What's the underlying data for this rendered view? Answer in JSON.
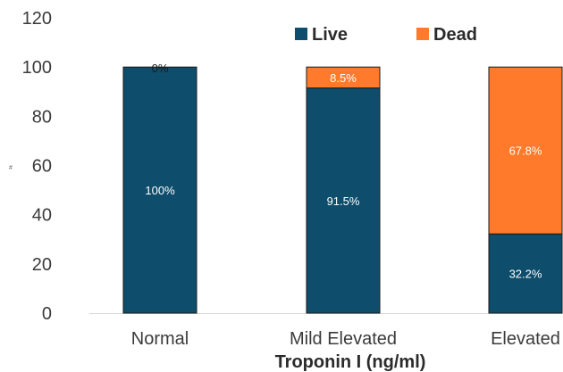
{
  "chart_data": {
    "type": "bar",
    "stacked": true,
    "categories": [
      "Normal",
      "Mild Elevated",
      "Elevated"
    ],
    "series": [
      {
        "name": "Live",
        "color": "#0E4D6B",
        "values": [
          100,
          91.5,
          32.2
        ],
        "labels": [
          "100%",
          "91.5%",
          "32.2%"
        ]
      },
      {
        "name": "Dead",
        "color": "#FF7A2A",
        "values": [
          0,
          8.5,
          67.8
        ],
        "labels": [
          "0%",
          "8.5%",
          "67.8%"
        ]
      }
    ],
    "title": "",
    "xlabel": "Troponin I (ng/ml)",
    "ylabel": "#",
    "ylim": [
      0,
      120
    ],
    "yticks": [
      0,
      20,
      40,
      60,
      80,
      100,
      120
    ],
    "grid": false,
    "legend_position": "top-right"
  }
}
